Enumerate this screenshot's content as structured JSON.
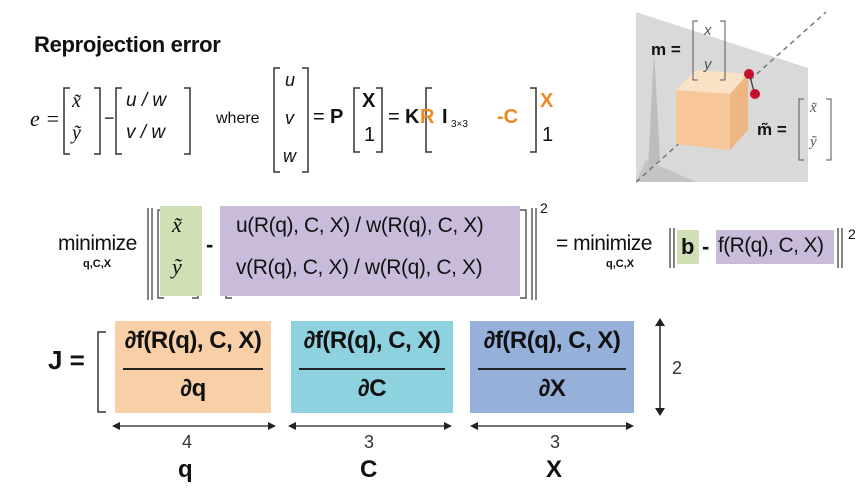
{
  "title": "Reprojection error",
  "error_eq": {
    "lhs": "e =",
    "v1": [
      "x̃",
      "ỹ"
    ],
    "minus": "−",
    "v2": [
      "u / w",
      "v / w"
    ]
  },
  "where_label": "where",
  "proj_eq": {
    "uvw": [
      "u",
      "v",
      "w"
    ],
    "eq1": "=",
    "P": "P",
    "X_top": "X",
    "X_bot": "1",
    "eq2": "=",
    "K": "K",
    "R": "R",
    "I": "I",
    "I_sub": "3×3",
    "negC": "-C",
    "X2_top": "X",
    "X2_bot": "1"
  },
  "inset": {
    "m_label": "m =",
    "m_vec": [
      "x",
      "y"
    ],
    "mt_label": "m̃ =",
    "mt_vec": [
      "x̃",
      "ỹ"
    ]
  },
  "minimize": {
    "word": "minimize",
    "sub": "q,C,X",
    "green_vec": [
      "x̃",
      "ỹ"
    ],
    "minus": "-",
    "purple_vec": [
      "u(R(q), C, X) / w(R(q), C, X)",
      "v(R(q), C, X) / w(R(q), C, X)"
    ],
    "power": "2",
    "eq": "= minimize",
    "rhs_sub": "q,C,X",
    "b": "b",
    "minus2": "-",
    "f": "f(R(q), C, X)",
    "power2": "2"
  },
  "jacobian": {
    "lhs": "J =",
    "blocks": [
      {
        "num": "∂f(R(q), C, X)",
        "den": "∂q",
        "dim": "4",
        "var": "q",
        "color": "#f9cfa8"
      },
      {
        "num": "∂f(R(q), C, X)",
        "den": "∂C",
        "dim": "3",
        "var": "C",
        "color": "#8fd2df"
      },
      {
        "num": "∂f(R(q), C, X)",
        "den": "∂X",
        "dim": "3",
        "var": "X",
        "color": "#95b1d9"
      }
    ],
    "rows": "2"
  }
}
